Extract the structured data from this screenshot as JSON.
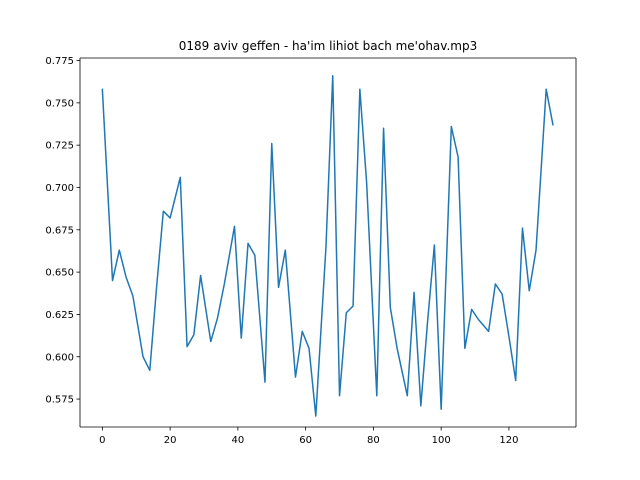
{
  "colors": {
    "line": "#1f77b4",
    "background": "#ffffff",
    "axes": "#000000"
  },
  "chart_data": {
    "type": "line",
    "title": "0189 aviv geffen - ha'im lihiot bach me'ohav.mp3",
    "xlabel": "",
    "ylabel": "",
    "xlim": [
      -6.6,
      139.8
    ],
    "ylim": [
      0.5585,
      0.7765
    ],
    "grid": false,
    "legend": "none",
    "x_ticks": [
      0,
      20,
      40,
      60,
      80,
      100,
      120
    ],
    "x_tick_labels": [
      "0",
      "20",
      "40",
      "60",
      "80",
      "100",
      "120"
    ],
    "y_ticks": [
      0.575,
      0.6,
      0.625,
      0.65,
      0.675,
      0.7,
      0.725,
      0.75,
      0.775
    ],
    "y_tick_labels": [
      "0.575",
      "0.600",
      "0.625",
      "0.650",
      "0.675",
      "0.700",
      "0.725",
      "0.750",
      "0.775"
    ],
    "series": [
      {
        "x": [
          0,
          3,
          5,
          7,
          9,
          12,
          14,
          16,
          18,
          20,
          23,
          25,
          27,
          29,
          32,
          34,
          36,
          39,
          41,
          43,
          45,
          48,
          50,
          52,
          54,
          57,
          59,
          61,
          63,
          66,
          68,
          70,
          72,
          74,
          76,
          78,
          81,
          83,
          85,
          87,
          90,
          92,
          94,
          96,
          98,
          100,
          103,
          105,
          107,
          109,
          111,
          114,
          116,
          118,
          120,
          122,
          124,
          126,
          128,
          131,
          133
        ],
        "values": [
          0.758,
          0.645,
          0.663,
          0.647,
          0.636,
          0.6,
          0.592,
          0.641,
          0.686,
          0.682,
          0.706,
          0.606,
          0.613,
          0.648,
          0.609,
          0.623,
          0.643,
          0.677,
          0.611,
          0.667,
          0.66,
          0.585,
          0.726,
          0.641,
          0.663,
          0.588,
          0.615,
          0.605,
          0.565,
          0.665,
          0.766,
          0.577,
          0.626,
          0.63,
          0.758,
          0.703,
          0.577,
          0.735,
          0.629,
          0.605,
          0.577,
          0.638,
          0.571,
          0.621,
          0.666,
          0.569,
          0.736,
          0.718,
          0.605,
          0.628,
          0.622,
          0.615,
          0.643,
          0.637,
          0.612,
          0.586,
          0.676,
          0.639,
          0.663,
          0.758,
          0.737
        ]
      }
    ]
  }
}
